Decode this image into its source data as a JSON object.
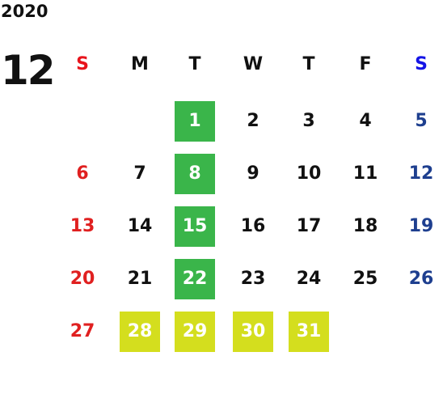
{
  "year": "2020",
  "month": "12",
  "weekdays": [
    {
      "label": "S",
      "color": "#e8141c"
    },
    {
      "label": "M",
      "color": "#111111"
    },
    {
      "label": "T",
      "color": "#111111"
    },
    {
      "label": "W",
      "color": "#111111"
    },
    {
      "label": "T",
      "color": "#111111"
    },
    {
      "label": "F",
      "color": "#111111"
    },
    {
      "label": "S",
      "color": "#1414e6"
    }
  ],
  "day_colors": [
    "#e02020",
    "#111111",
    "#111111",
    "#111111",
    "#111111",
    "#111111",
    "#1e3f8f"
  ],
  "weeks": [
    [
      null,
      null,
      {
        "day": 1,
        "fill": "#3ab54a"
      },
      {
        "day": 2
      },
      {
        "day": 3
      },
      {
        "day": 4
      },
      {
        "day": 5
      }
    ],
    [
      {
        "day": 6
      },
      {
        "day": 7
      },
      {
        "day": 8,
        "fill": "#3ab54a"
      },
      {
        "day": 9
      },
      {
        "day": 10
      },
      {
        "day": 11
      },
      {
        "day": 12
      }
    ],
    [
      {
        "day": 13
      },
      {
        "day": 14
      },
      {
        "day": 15,
        "fill": "#3ab54a"
      },
      {
        "day": 16
      },
      {
        "day": 17
      },
      {
        "day": 18
      },
      {
        "day": 19
      }
    ],
    [
      {
        "day": 20
      },
      {
        "day": 21
      },
      {
        "day": 22,
        "fill": "#3ab54a"
      },
      {
        "day": 23
      },
      {
        "day": 24
      },
      {
        "day": 25
      },
      {
        "day": 26
      }
    ],
    [
      {
        "day": 27
      },
      {
        "day": 28,
        "fill": "#d4de1e"
      },
      {
        "day": 29,
        "fill": "#d4de1e"
      },
      {
        "day": 30,
        "fill": "#d4de1e"
      },
      {
        "day": 31,
        "fill": "#d4de1e"
      },
      null,
      null
    ]
  ]
}
